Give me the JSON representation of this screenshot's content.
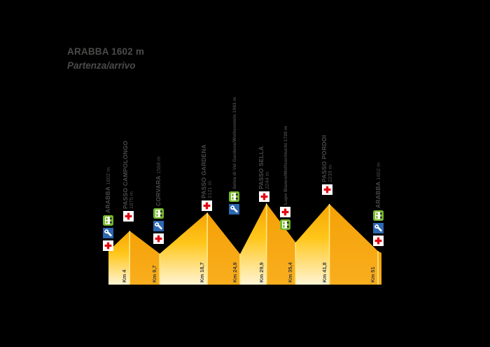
{
  "title": {
    "line1": "ARABBA 1602 m",
    "line2": "Partenza/arrivo"
  },
  "chart_data": {
    "type": "area",
    "title": "ARABBA 1602 m - Partenza/arrivo",
    "xlabel": "",
    "ylabel": "",
    "x_unit": "km",
    "y_unit": "m",
    "xlim": [
      0,
      51.6
    ],
    "grid": false,
    "legend": false,
    "points": [
      {
        "km": 0,
        "elev": 1602,
        "name": "Arabba"
      },
      {
        "km": 4,
        "elev": 1875,
        "name": "Passo Campolongo"
      },
      {
        "km": 9.7,
        "elev": 1568,
        "name": "Corvara"
      },
      {
        "km": 18.7,
        "elev": 2121,
        "name": "Passo Gardena"
      },
      {
        "km": 24.9,
        "elev": 1563,
        "name": "Selva di Val Gardena/Wolkenstein"
      },
      {
        "km": 29.9,
        "elev": 2244,
        "name": "Passo Sella"
      },
      {
        "km": 35.4,
        "elev": 1720,
        "name": "Lupo Bianco/Wolfsschlucht"
      },
      {
        "km": 41.8,
        "elev": 2239,
        "name": "Passo Pordoi"
      },
      {
        "km": 51,
        "elev": 1602,
        "name": "Arabba"
      }
    ],
    "km_ticks": [
      {
        "label": "Km 4",
        "km": 4
      },
      {
        "label": "Km 9,7",
        "km": 9.7
      },
      {
        "label": "Km 18,7",
        "km": 18.7
      },
      {
        "label": "Km 24,9",
        "km": 24.9
      },
      {
        "label": "Km 29,9",
        "km": 29.9
      },
      {
        "label": "Km 35,4",
        "km": 35.4
      },
      {
        "label": "Km 41,8",
        "km": 41.8
      },
      {
        "label": "Km 51",
        "km": 51
      }
    ]
  },
  "waypoints": [
    {
      "id": "arabba-start",
      "name": "ARABBA",
      "elevation": "1602 m",
      "style": "inline",
      "icons": [
        "first-aid",
        "mechanic",
        "bus"
      ],
      "km": 0
    },
    {
      "id": "passo-campolongo",
      "name": "PASSO CAMPOLONGO",
      "elevation": "1875 m",
      "style": "stacked",
      "icons": [
        "first-aid"
      ],
      "km": 4
    },
    {
      "id": "corvara",
      "name": "CORVARA",
      "elevation": "1568 m",
      "style": "inline",
      "icons": [
        "first-aid",
        "mechanic",
        "bus"
      ],
      "km": 9.7
    },
    {
      "id": "passo-gardena",
      "name": "PASSO GARDENA",
      "elevation": "2121 m",
      "style": "stacked",
      "icons": [
        "first-aid"
      ],
      "km": 18.7
    },
    {
      "id": "selva",
      "name": "Selva di Val Gardena/Wolkenstein",
      "elevation": "1563 m",
      "style": "small",
      "icons": [
        "mechanic",
        "bus"
      ],
      "km": 24.9
    },
    {
      "id": "passo-sella",
      "name": "PASSO SELLA",
      "elevation": "2244 m",
      "style": "stacked",
      "icons": [
        "first-aid"
      ],
      "km": 29.9
    },
    {
      "id": "lupo-bianco",
      "name": "Lupo Bianco/Wolfsschlucht",
      "elevation": "1720 m",
      "style": "small",
      "icons": [
        "bus",
        "first-aid"
      ],
      "km": 35.4
    },
    {
      "id": "passo-pordoi",
      "name": "PASSO PORDOI",
      "elevation": "2239 m",
      "style": "stacked",
      "icons": [
        "first-aid"
      ],
      "km": 41.8
    },
    {
      "id": "arabba-end",
      "name": "ARABBA",
      "elevation": "1602 m",
      "style": "inline",
      "icons": [
        "first-aid",
        "mechanic",
        "bus"
      ],
      "km": 51
    }
  ],
  "icons_legend": {
    "first-aid": "first-aid station",
    "mechanic": "mechanical assistance",
    "bus": "shuttle bus"
  },
  "colors": {
    "background": "#000000",
    "text_gray": "#4b4b4a",
    "km_text": "#3c3c3b",
    "ascent_top": "#F5A402",
    "ascent_mid": "#FFC61A",
    "ascent_bottom": "#FFF5D5",
    "descent_top": "#F4A105",
    "descent_bottom": "#F9AE1F",
    "km_line": "#FFE884",
    "cross_red": "#E30613",
    "wrench_blue": "#2D68B2",
    "bus_green": "#76B82A",
    "icon_white": "#FFFFFF",
    "wheel_dark": "#2f2f2e"
  }
}
